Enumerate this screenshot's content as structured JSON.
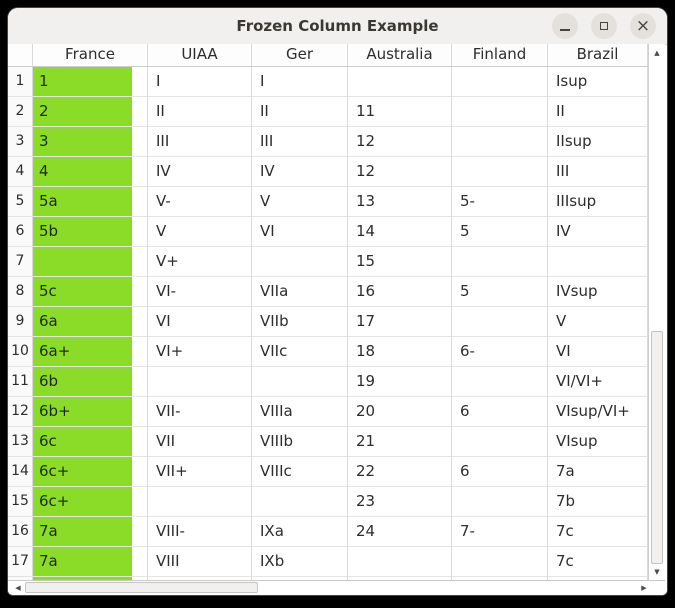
{
  "window": {
    "title": "Frozen Column Example"
  },
  "icons": {
    "close": "×",
    "scroll_up": "▲",
    "scroll_down": "▼",
    "scroll_left": "◀",
    "scroll_right": "▶"
  },
  "colors": {
    "frozen_column_green": "#8bdb29"
  },
  "table": {
    "columns": [
      "France",
      "UIAA",
      "Ger",
      "Australia",
      "Finland",
      "Brazil"
    ],
    "rows": [
      {
        "n": "1",
        "france": "1",
        "uiaa": "I",
        "ger": "I",
        "australia": "",
        "finland": "",
        "brazil": "Isup"
      },
      {
        "n": "2",
        "france": "2",
        "uiaa": "II",
        "ger": "II",
        "australia": "11",
        "finland": "",
        "brazil": "II"
      },
      {
        "n": "3",
        "france": "3",
        "uiaa": "III",
        "ger": "III",
        "australia": "12",
        "finland": "",
        "brazil": "IIsup"
      },
      {
        "n": "4",
        "france": "4",
        "uiaa": "IV",
        "ger": "IV",
        "australia": "12",
        "finland": "",
        "brazil": "III"
      },
      {
        "n": "5",
        "france": "5a",
        "uiaa": "V-",
        "ger": "V",
        "australia": "13",
        "finland": "5-",
        "brazil": "IIIsup"
      },
      {
        "n": "6",
        "france": "5b",
        "uiaa": "V",
        "ger": "VI",
        "australia": "14",
        "finland": "5",
        "brazil": "IV"
      },
      {
        "n": "7",
        "france": "",
        "uiaa": "V+",
        "ger": "",
        "australia": "15",
        "finland": "",
        "brazil": ""
      },
      {
        "n": "8",
        "france": "5c",
        "uiaa": "VI-",
        "ger": "VIIa",
        "australia": "16",
        "finland": "5",
        "brazil": "IVsup"
      },
      {
        "n": "9",
        "france": "6a",
        "uiaa": "VI",
        "ger": "VIIb",
        "australia": "17",
        "finland": "",
        "brazil": "V"
      },
      {
        "n": "10",
        "france": "6a+",
        "uiaa": "VI+",
        "ger": "VIIc",
        "australia": "18",
        "finland": "6-",
        "brazil": "VI"
      },
      {
        "n": "11",
        "france": "6b",
        "uiaa": "",
        "ger": "",
        "australia": "19",
        "finland": "",
        "brazil": "VI/VI+"
      },
      {
        "n": "12",
        "france": "6b+",
        "uiaa": "VII-",
        "ger": "VIIIa",
        "australia": "20",
        "finland": "6",
        "brazil": "VIsup/VI+"
      },
      {
        "n": "13",
        "france": "6c",
        "uiaa": "VII",
        "ger": "VIIIb",
        "australia": "21",
        "finland": "",
        "brazil": "VIsup"
      },
      {
        "n": "14",
        "france": "6c+",
        "uiaa": "VII+",
        "ger": "VIIIc",
        "australia": "22",
        "finland": "6",
        "brazil": "7a"
      },
      {
        "n": "15",
        "france": "6c+",
        "uiaa": "",
        "ger": "",
        "australia": "23",
        "finland": "",
        "brazil": "7b"
      },
      {
        "n": "16",
        "france": "7a",
        "uiaa": "VIII-",
        "ger": "IXa",
        "australia": "24",
        "finland": "7-",
        "brazil": "7c"
      },
      {
        "n": "17",
        "france": "7a",
        "uiaa": "VIII",
        "ger": "IXb",
        "australia": "",
        "finland": "",
        "brazil": "7c"
      }
    ]
  }
}
